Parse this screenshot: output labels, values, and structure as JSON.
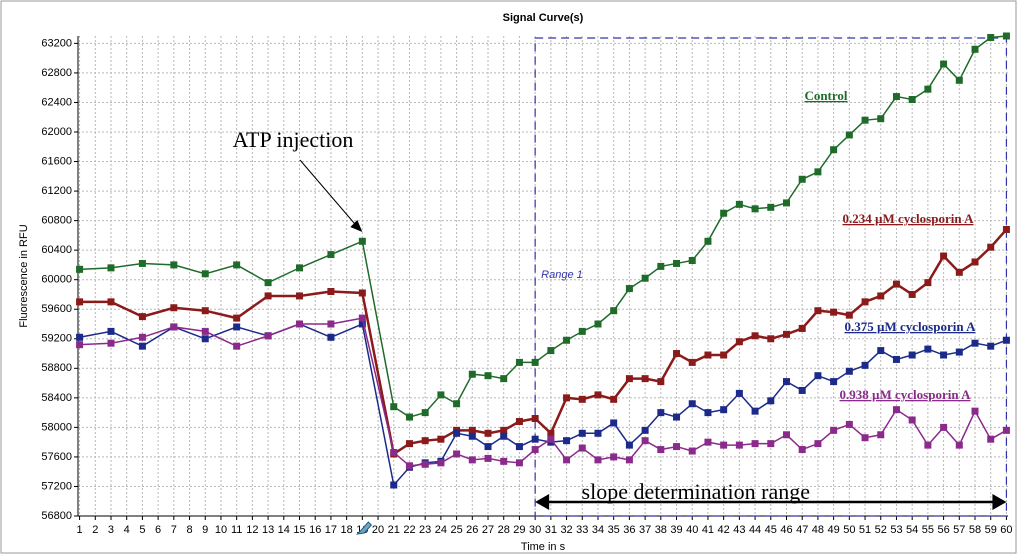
{
  "chart_data": {
    "type": "line",
    "title": "Signal Curve(s)",
    "x_label": "Time in s",
    "y_label": "Fluorescence in RFU",
    "x": [
      1,
      3,
      5,
      7,
      9,
      11,
      13,
      15,
      17,
      19,
      21,
      22,
      23,
      24,
      25,
      26,
      27,
      28,
      29,
      30,
      31,
      32,
      33,
      34,
      35,
      36,
      37,
      38,
      39,
      40,
      41,
      42,
      43,
      44,
      45,
      46,
      47,
      48,
      49,
      50,
      51,
      52,
      53,
      54,
      55,
      56,
      57,
      58,
      59,
      60
    ],
    "series": [
      {
        "name": "Control",
        "color": "#1f6b2a",
        "values": [
          60140,
          60160,
          60220,
          60200,
          60080,
          60200,
          59960,
          60160,
          60340,
          60520,
          58280,
          58140,
          58200,
          58440,
          58320,
          58720,
          58700,
          58660,
          58880,
          58880,
          59040,
          59180,
          59300,
          59400,
          59580,
          59880,
          60020,
          60180,
          60220,
          60260,
          60520,
          60900,
          61020,
          60960,
          60980,
          61040,
          61360,
          61460,
          61760,
          61960,
          62160,
          62180,
          62480,
          62440,
          62580,
          62920,
          62700,
          63120,
          63280,
          63300
        ]
      },
      {
        "name": "0.234 µM cyclosporin A",
        "color": "#8b1a1a",
        "values": [
          59700,
          59700,
          59500,
          59620,
          59580,
          59480,
          59780,
          59780,
          59840,
          59820,
          57640,
          57780,
          57820,
          57840,
          57960,
          57960,
          57920,
          57960,
          58080,
          58120,
          57920,
          58400,
          58380,
          58440,
          58380,
          58660,
          58660,
          58620,
          59000,
          58880,
          58980,
          58980,
          59160,
          59240,
          59200,
          59260,
          59340,
          59580,
          59560,
          59520,
          59700,
          59780,
          59940,
          59800,
          59960,
          60320,
          60100,
          60240,
          60440,
          60680
        ]
      },
      {
        "name": "0.375 µM cyclosporin A",
        "color": "#1c2a8a",
        "values": [
          59220,
          59300,
          59100,
          59360,
          59200,
          59360,
          59240,
          59400,
          59220,
          59400,
          57220,
          57460,
          57520,
          57540,
          57920,
          57880,
          57740,
          57880,
          57740,
          57840,
          57800,
          57820,
          57920,
          57920,
          58060,
          57760,
          57960,
          58200,
          58140,
          58320,
          58200,
          58240,
          58460,
          58220,
          58360,
          58620,
          58500,
          58700,
          58620,
          58760,
          58840,
          59040,
          58920,
          58980,
          59060,
          58980,
          59020,
          59140,
          59100,
          59180
        ]
      },
      {
        "name": "0.938 µM cyclosporin A",
        "color": "#8a2a8a",
        "values": [
          59120,
          59140,
          59220,
          59360,
          59300,
          59100,
          59240,
          59400,
          59400,
          59480,
          57660,
          57480,
          57500,
          57520,
          57640,
          57560,
          57580,
          57540,
          57520,
          57700,
          57840,
          57560,
          57720,
          57560,
          57600,
          57560,
          57820,
          57700,
          57740,
          57680,
          57800,
          57760,
          57760,
          57780,
          57780,
          57900,
          57700,
          57780,
          57960,
          58040,
          57860,
          57900,
          58240,
          58100,
          57760,
          58000,
          57760,
          58220,
          57840,
          57960
        ]
      }
    ],
    "xlim": [
      0.9,
      60.1
    ],
    "ylim": [
      56800,
      63300
    ],
    "xticks": [
      1,
      2,
      3,
      4,
      5,
      6,
      7,
      8,
      9,
      10,
      11,
      12,
      13,
      14,
      15,
      16,
      17,
      18,
      19,
      20,
      21,
      22,
      23,
      24,
      25,
      26,
      27,
      28,
      29,
      30,
      31,
      32,
      33,
      34,
      35,
      36,
      37,
      38,
      39,
      40,
      41,
      42,
      43,
      44,
      45,
      46,
      47,
      48,
      49,
      50,
      51,
      52,
      53,
      54,
      55,
      56,
      57,
      58,
      59,
      60
    ],
    "yticks": [
      56800,
      57200,
      57600,
      58000,
      58400,
      58800,
      59200,
      59600,
      60000,
      60400,
      60800,
      61200,
      61600,
      62000,
      62400,
      62800,
      63200
    ],
    "grid": true,
    "range": {
      "label": "Range 1",
      "x": [
        30,
        60
      ],
      "annotation": "slope determination range"
    },
    "annotation": {
      "text": "ATP injection",
      "x": 19
    }
  }
}
